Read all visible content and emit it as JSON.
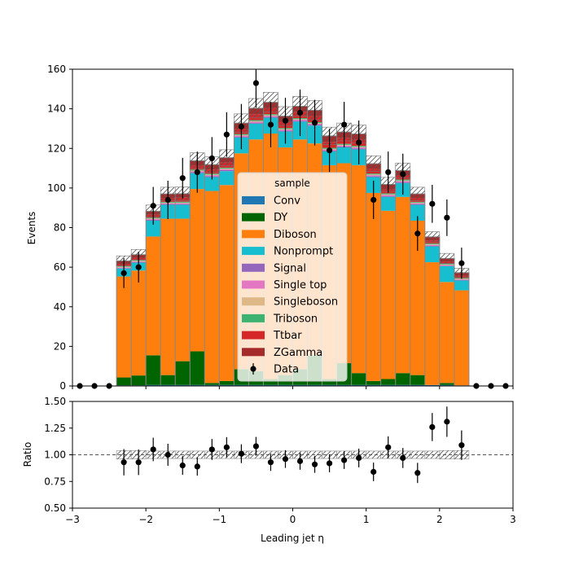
{
  "chart_data": [
    {
      "type": "bar",
      "stacked": true,
      "histogram": true,
      "bin_edges": [
        -3.0,
        -2.8,
        -2.6,
        -2.4,
        -2.2,
        -2.0,
        -1.8,
        -1.6,
        -1.4,
        -1.2,
        -1.0,
        -0.8,
        -0.6,
        -0.4,
        -0.2,
        0.0,
        0.2,
        0.4,
        0.6,
        0.8,
        1.0,
        1.2,
        1.4,
        1.6,
        1.8,
        2.0,
        2.2,
        2.4,
        2.6,
        2.8,
        3.0
      ],
      "xlim": [
        -3,
        3
      ],
      "ylim": [
        0,
        160
      ],
      "ylabel": "Events",
      "yticks": [
        0,
        20,
        40,
        60,
        80,
        100,
        120,
        140,
        160
      ],
      "legend_title": "sample",
      "legend_position": "center",
      "series": [
        {
          "name": "Conv",
          "color": "#1f77b4",
          "values": [
            0,
            0,
            0,
            0.3,
            0.3,
            0.5,
            0.5,
            0.5,
            0.5,
            0.5,
            0.5,
            0.5,
            0.5,
            0.5,
            0.5,
            0.5,
            0.5,
            0.5,
            0.5,
            0.5,
            0.5,
            0.5,
            0.5,
            0.5,
            0.5,
            0.5,
            0.3,
            0,
            0,
            0
          ]
        },
        {
          "name": "DY",
          "color": "#006400",
          "values": [
            0,
            0,
            0,
            4,
            5,
            15,
            5,
            12,
            17,
            1,
            2,
            8,
            7,
            3,
            5,
            8,
            15,
            3,
            11,
            6,
            2,
            3,
            6,
            5,
            0,
            1,
            0,
            0,
            0,
            0
          ]
        },
        {
          "name": "Diboson",
          "color": "#ff7f0e",
          "values": [
            0,
            0,
            0,
            51,
            53,
            60,
            79,
            72,
            82,
            97,
            99,
            109,
            117,
            124,
            115,
            116,
            107,
            108,
            101,
            105,
            95,
            85,
            89,
            78,
            62,
            51,
            48,
            0,
            0,
            0
          ]
        },
        {
          "name": "Nonprompt",
          "color": "#17becf",
          "values": [
            0,
            0,
            0,
            4,
            4,
            8,
            7,
            7,
            8,
            7,
            7,
            8,
            8,
            8,
            8,
            9,
            9,
            7,
            8,
            8,
            8,
            7,
            7,
            8,
            8,
            8,
            5,
            0,
            0,
            0
          ]
        },
        {
          "name": "Signal",
          "color": "#9467bd",
          "values": [
            0,
            0,
            0,
            0.3,
            0.3,
            0.4,
            0.4,
            0.4,
            0.5,
            0.5,
            0.5,
            0.5,
            0.5,
            0.5,
            0.5,
            0.5,
            0.5,
            0.5,
            0.5,
            0.5,
            0.5,
            0.5,
            0.5,
            0.4,
            0.4,
            0.3,
            0.3,
            0,
            0,
            0
          ]
        },
        {
          "name": "Single top",
          "color": "#e377c2",
          "values": [
            0,
            0,
            0,
            0.3,
            0.3,
            0.4,
            0.4,
            0.4,
            0.5,
            0.5,
            0.5,
            0.5,
            0.5,
            0.5,
            0.5,
            0.5,
            0.5,
            0.5,
            0.5,
            0.5,
            0.5,
            0.5,
            0.5,
            0.4,
            0.4,
            0.3,
            0.3,
            0,
            0,
            0
          ]
        },
        {
          "name": "Singleboson",
          "color": "#deb887",
          "values": [
            0,
            0,
            0,
            0.3,
            0.3,
            0.3,
            0.3,
            0.3,
            0.3,
            0.3,
            0.3,
            0.3,
            0.3,
            0.3,
            0.3,
            0.3,
            0.3,
            0.3,
            0.3,
            0.3,
            0.3,
            0.3,
            0.3,
            0.3,
            0.3,
            0.3,
            0.3,
            0,
            0,
            0
          ]
        },
        {
          "name": "Triboson",
          "color": "#3cb371",
          "values": [
            0,
            0,
            0,
            0.3,
            0.3,
            0.4,
            0.4,
            0.5,
            0.5,
            0.5,
            0.5,
            0.5,
            0.5,
            0.5,
            0.5,
            0.5,
            0.5,
            0.5,
            0.5,
            0.5,
            0.5,
            0.5,
            0.5,
            0.4,
            0.4,
            0.3,
            0.3,
            0,
            0,
            0
          ]
        },
        {
          "name": "Ttbar",
          "color": "#d62728",
          "values": [
            0,
            0,
            0,
            1.2,
            1.3,
            1.5,
            2,
            2,
            2,
            2,
            2.5,
            2.5,
            3,
            3,
            3,
            3,
            3,
            3,
            3,
            3,
            2.5,
            2,
            2,
            2,
            1.5,
            1.2,
            1.2,
            0,
            0,
            0
          ]
        },
        {
          "name": "ZGamma",
          "color": "#a52a2a",
          "values": [
            0,
            0,
            0,
            1.5,
            1.5,
            1.8,
            2,
            2,
            2.5,
            2.5,
            2.5,
            3,
            3,
            3,
            3,
            3,
            3,
            3,
            3,
            3,
            2.5,
            2.5,
            2.5,
            2,
            1.8,
            1.5,
            1.5,
            0,
            0,
            0
          ]
        }
      ],
      "uncertainty_frac": [
        0,
        0,
        0,
        0.04,
        0.04,
        0.035,
        0.035,
        0.035,
        0.035,
        0.035,
        0.035,
        0.035,
        0.035,
        0.035,
        0.035,
        0.035,
        0.035,
        0.035,
        0.035,
        0.035,
        0.035,
        0.035,
        0.035,
        0.035,
        0.035,
        0.04,
        0.04,
        0,
        0,
        0
      ],
      "data": {
        "name": "Data",
        "color": "#000000",
        "x": [
          -2.9,
          -2.7,
          -2.5,
          -2.3,
          -2.1,
          -1.9,
          -1.7,
          -1.5,
          -1.3,
          -1.1,
          -0.9,
          -0.7,
          -0.5,
          -0.3,
          -0.1,
          0.1,
          0.3,
          0.5,
          0.7,
          0.9,
          1.1,
          1.3,
          1.5,
          1.7,
          1.9,
          2.1,
          2.3,
          2.5,
          2.7,
          2.9
        ],
        "y": [
          0,
          0,
          0,
          57,
          60,
          91,
          94,
          105,
          108,
          115,
          127,
          131,
          153,
          132,
          134,
          138,
          133,
          119,
          132,
          123,
          94,
          108,
          107,
          77,
          92,
          85,
          62,
          0,
          0,
          0
        ]
      }
    },
    {
      "type": "scatter",
      "xlabel": "Leading jet  η",
      "ylabel": "Ratio",
      "xlim": [
        -3,
        3
      ],
      "ylim": [
        0.5,
        1.5
      ],
      "xticks": [
        -3,
        -2,
        -1,
        0,
        1,
        2,
        3
      ],
      "xtick_labels": [
        "−3",
        "−2",
        "−1",
        "0",
        "1",
        "2",
        "3"
      ],
      "yticks": [
        0.5,
        0.75,
        1.0,
        1.25,
        1.5
      ],
      "ytick_labels": [
        "0.50",
        "0.75",
        "1.00",
        "1.25",
        "1.50"
      ],
      "reference_line": 1.0,
      "x": [
        -2.3,
        -2.1,
        -1.9,
        -1.7,
        -1.5,
        -1.3,
        -1.1,
        -0.9,
        -0.7,
        -0.5,
        -0.3,
        -0.1,
        0.1,
        0.3,
        0.5,
        0.7,
        0.9,
        1.1,
        1.3,
        1.5,
        1.7,
        1.9,
        2.1,
        2.3
      ],
      "y": [
        0.93,
        0.93,
        1.05,
        1.0,
        0.9,
        0.89,
        1.05,
        1.07,
        1.01,
        1.08,
        0.93,
        0.96,
        0.94,
        0.91,
        0.92,
        0.95,
        0.97,
        0.84,
        1.07,
        0.97,
        0.83,
        1.26,
        1.31,
        1.09
      ]
    }
  ]
}
